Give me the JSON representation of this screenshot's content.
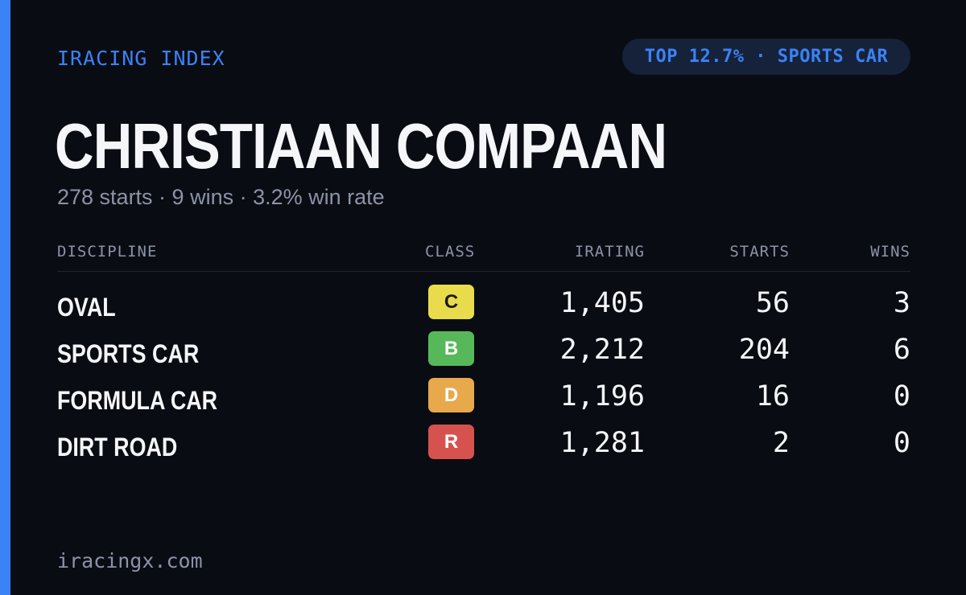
{
  "brand": "IRACING INDEX",
  "rank_pill": "TOP 12.7% · SPORTS CAR",
  "driver_name": "CHRISTIAAN COMPAAN",
  "summary": "278 starts · 9 wins · 3.2% win rate",
  "table": {
    "headers": {
      "discipline": "DISCIPLINE",
      "class": "CLASS",
      "irating": "IRATING",
      "starts": "STARTS",
      "wins": "WINS"
    },
    "rows": [
      {
        "discipline": "OVAL",
        "class": "C",
        "class_color": "#e8dc4c",
        "class_text_color": "#1a1a1a",
        "irating": "1,405",
        "starts": "56",
        "wins": "3"
      },
      {
        "discipline": "SPORTS CAR",
        "class": "B",
        "class_color": "#57b85a",
        "class_text_color": "#ffffff",
        "irating": "2,212",
        "starts": "204",
        "wins": "6"
      },
      {
        "discipline": "FORMULA CAR",
        "class": "D",
        "class_color": "#e8a84c",
        "class_text_color": "#ffffff",
        "irating": "1,196",
        "starts": "16",
        "wins": "0"
      },
      {
        "discipline": "DIRT ROAD",
        "class": "R",
        "class_color": "#d6524f",
        "class_text_color": "#ffffff",
        "irating": "1,281",
        "starts": "2",
        "wins": "0"
      }
    ]
  },
  "footer": "iracingx.com",
  "colors": {
    "accent": "#3b82f6",
    "background": "#0a0c13",
    "pill_background": "#16223a",
    "muted_text": "#8b93a6",
    "primary_text": "#f5f6fa"
  }
}
